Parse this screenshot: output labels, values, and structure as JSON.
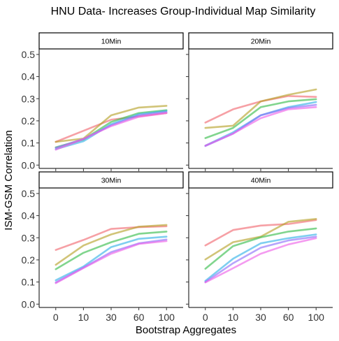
{
  "chart_data": {
    "type": "line",
    "title": "HNU Data- Increases Group-Individual Map Similarity",
    "xlabel": "Bootstrap Aggregates",
    "ylabel": "ISM-GSM Correlation",
    "x_categories": [
      "0",
      "10",
      "30",
      "60",
      "100"
    ],
    "y_ticks": [
      "0.0",
      "0.1",
      "0.2",
      "0.3",
      "0.4",
      "0.5"
    ],
    "ylim": [
      -0.015,
      0.525
    ],
    "grid": false,
    "legend": "none",
    "series_colors": [
      "#F0666E",
      "#B59F25",
      "#33BB48",
      "#2FB0E6",
      "#8A6CF8",
      "#EE5EE6"
    ],
    "panels": [
      {
        "label": "10Min",
        "series": [
          {
            "values": [
              0.105,
              0.155,
              0.205,
              0.22,
              0.235
            ]
          },
          {
            "values": [
              0.105,
              0.12,
              0.225,
              0.26,
              0.268
            ]
          },
          {
            "values": [
              0.08,
              0.115,
              0.195,
              0.235,
              0.248
            ]
          },
          {
            "values": [
              0.072,
              0.108,
              0.185,
              0.23,
              0.245
            ]
          },
          {
            "values": [
              0.078,
              0.118,
              0.18,
              0.225,
              0.24
            ]
          },
          {
            "values": [
              0.07,
              0.118,
              0.176,
              0.218,
              0.235
            ]
          }
        ]
      },
      {
        "label": "20Min",
        "series": [
          {
            "values": [
              0.192,
              0.252,
              0.288,
              0.312,
              0.308
            ]
          },
          {
            "values": [
              0.168,
              0.178,
              0.288,
              0.318,
              0.342
            ]
          },
          {
            "values": [
              0.122,
              0.168,
              0.262,
              0.288,
              0.298
            ]
          },
          {
            "values": [
              0.088,
              0.148,
              0.225,
              0.262,
              0.285
            ]
          },
          {
            "values": [
              0.086,
              0.142,
              0.225,
              0.258,
              0.272
            ]
          },
          {
            "values": [
              0.088,
              0.142,
              0.212,
              0.252,
              0.262
            ]
          }
        ]
      },
      {
        "label": "30Min",
        "series": [
          {
            "values": [
              0.245,
              0.29,
              0.34,
              0.348,
              0.352
            ]
          },
          {
            "values": [
              0.178,
              0.265,
              0.315,
              0.35,
              0.358
            ]
          },
          {
            "values": [
              0.158,
              0.232,
              0.28,
              0.318,
              0.328
            ]
          },
          {
            "values": [
              0.108,
              0.17,
              0.258,
              0.295,
              0.305
            ]
          },
          {
            "values": [
              0.098,
              0.165,
              0.235,
              0.275,
              0.292
            ]
          },
          {
            "values": [
              0.095,
              0.163,
              0.228,
              0.272,
              0.285
            ]
          }
        ]
      },
      {
        "label": "40Min",
        "series": [
          {
            "values": [
              0.265,
              0.335,
              0.355,
              0.362,
              0.38
            ]
          },
          {
            "values": [
              0.202,
              0.28,
              0.305,
              0.372,
              0.385
            ]
          },
          {
            "values": [
              0.16,
              0.262,
              0.302,
              0.328,
              0.342
            ]
          },
          {
            "values": [
              0.105,
              0.205,
              0.275,
              0.298,
              0.315
            ]
          },
          {
            "values": [
              0.1,
              0.185,
              0.255,
              0.288,
              0.305
            ]
          },
          {
            "values": [
              0.098,
              0.162,
              0.228,
              0.27,
              0.298
            ]
          }
        ]
      }
    ]
  }
}
